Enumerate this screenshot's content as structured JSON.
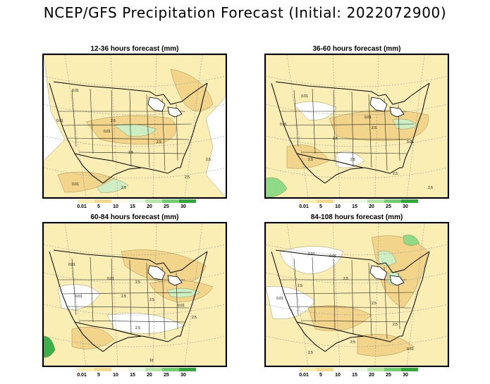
{
  "title": "NCEP/GFS Precipitation Forecast (Initial: 2022072900)",
  "colorbar": {
    "labels": [
      "0.01",
      "5",
      "10",
      "15",
      "20",
      "25",
      "30"
    ],
    "colors": [
      "#fbeeb4",
      "#f5d98a",
      "#fdfbe8",
      "#e9f7e4",
      "#b6e6a6",
      "#6fcf6f",
      "#2faa3a"
    ]
  },
  "fill_colors": {
    "light": "#fbeeb4",
    "medium": "#f2d48a",
    "greenlight": "#cdeec3",
    "green": "#8fda87",
    "darkgreen": "#3cae4a",
    "background": "#ffffff"
  },
  "panels": [
    {
      "title": "12-36 hours forecast (mm)",
      "contour_labels": [
        "0.01",
        "0.01",
        "0.01",
        "2.5",
        "2.5",
        "2.5",
        "0.01",
        "2.5",
        "2.5",
        "2.5"
      ]
    },
    {
      "title": "36-60 hours forecast (mm)",
      "contour_labels": [
        "0.01",
        "0.01",
        "0.01",
        "2.5",
        "2.5",
        "0.01",
        "2.5",
        "2.5",
        "2.5",
        "2.5"
      ]
    },
    {
      "title": "60-84 hours forecast (mm)",
      "contour_labels": [
        "0.01",
        "0.01",
        "2.5",
        "0.01",
        "2.5",
        "2.5",
        "0.01",
        "2.5",
        "2.5",
        "10"
      ]
    },
    {
      "title": "84-108 hours forecast (mm)",
      "contour_labels": [
        "0.01",
        "0.01",
        "2.5",
        "2.5",
        "0.01",
        "2.5",
        "2.5",
        "2.5",
        "0.01",
        "2.5"
      ]
    }
  ]
}
